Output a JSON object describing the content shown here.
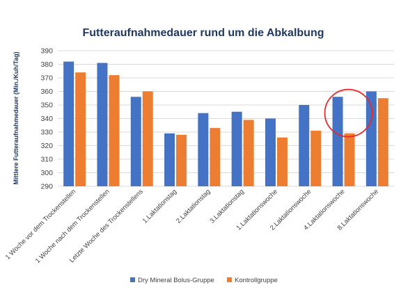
{
  "chart_data": {
    "type": "bar",
    "title": "Futteraufnahmedauer rund um die Abkalbung",
    "ylabel": "Mittlere Futteraufnahmedauer (Min./Kuh/Tag)",
    "xlabel": "",
    "ylim": [
      290,
      390
    ],
    "yticks": [
      290,
      300,
      310,
      320,
      330,
      340,
      350,
      360,
      370,
      380,
      390
    ],
    "grid": true,
    "legend_position": "bottom",
    "categories": [
      "1 Woche vor dem Trockenstellen",
      "1 Woche nach dem Trockenstellen",
      "Letzte Woche des Trockenstellens",
      "1.Laktationstag",
      "2.Laktationstag",
      "3.Laktationstag",
      "1.Laktationswoche",
      "2.Laktationswoche",
      "4.Laktationswoche",
      "8.Laktationswoche"
    ],
    "series": [
      {
        "name": "Dry Mineral Bolus-Gruppe",
        "color": "#4472c4",
        "values": [
          382,
          381,
          356,
          329,
          344,
          345,
          340,
          350,
          356,
          360
        ]
      },
      {
        "name": "Kontrollgruppe",
        "color": "#ed7d31",
        "values": [
          374,
          372,
          360,
          328,
          333,
          339,
          326,
          331,
          329,
          355
        ]
      }
    ],
    "annotation": {
      "shape": "circle",
      "color": "#e8292c",
      "category": "4.Laktationswoche"
    }
  }
}
